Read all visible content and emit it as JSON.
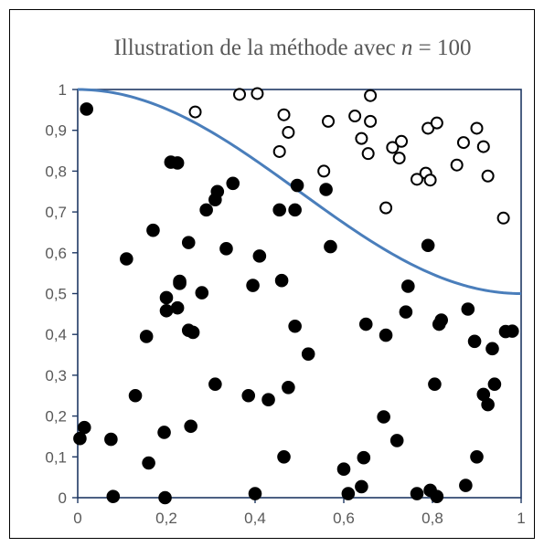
{
  "chart_data": {
    "type": "scatter",
    "title": "Illustration de la méthode avec ",
    "title_var": "n",
    "title_rest": " = 100",
    "xlim": [
      0,
      1
    ],
    "ylim": [
      0,
      1
    ],
    "x_ticks": [
      "0",
      "0,2",
      "0,4",
      "0,6",
      "0,8",
      "1"
    ],
    "y_ticks": [
      "0",
      "0,1",
      "0,2",
      "0,3",
      "0,4",
      "0,5",
      "0,6",
      "0,7",
      "0,8",
      "0,9",
      "1"
    ],
    "grid": false,
    "curve": {
      "color": "#4a7ebb",
      "function": "y = 1 - x^2/2 smoothstep-like decreasing from 1 to 0.5"
    },
    "series": [
      {
        "marker": "filled",
        "color": "#000000",
        "points": [
          [
            0.005,
            0.145
          ],
          [
            0.015,
            0.172
          ],
          [
            0.02,
            0.952
          ],
          [
            0.075,
            0.143
          ],
          [
            0.08,
            0.003
          ],
          [
            0.11,
            0.585
          ],
          [
            0.13,
            0.25
          ],
          [
            0.155,
            0.395
          ],
          [
            0.16,
            0.085
          ],
          [
            0.17,
            0.655
          ],
          [
            0.195,
            0.16
          ],
          [
            0.197,
            0.0
          ],
          [
            0.2,
            0.49
          ],
          [
            0.2,
            0.458
          ],
          [
            0.21,
            0.822
          ],
          [
            0.225,
            0.82
          ],
          [
            0.225,
            0.465
          ],
          [
            0.23,
            0.525
          ],
          [
            0.23,
            0.53
          ],
          [
            0.25,
            0.625
          ],
          [
            0.25,
            0.41
          ],
          [
            0.255,
            0.175
          ],
          [
            0.26,
            0.405
          ],
          [
            0.28,
            0.502
          ],
          [
            0.29,
            0.705
          ],
          [
            0.31,
            0.73
          ],
          [
            0.31,
            0.278
          ],
          [
            0.315,
            0.75
          ],
          [
            0.335,
            0.61
          ],
          [
            0.35,
            0.77
          ],
          [
            0.385,
            0.25
          ],
          [
            0.395,
            0.52
          ],
          [
            0.4,
            0.01
          ],
          [
            0.41,
            0.592
          ],
          [
            0.43,
            0.24
          ],
          [
            0.455,
            0.705
          ],
          [
            0.46,
            0.532
          ],
          [
            0.465,
            0.1
          ],
          [
            0.475,
            0.27
          ],
          [
            0.49,
            0.705
          ],
          [
            0.49,
            0.42
          ],
          [
            0.495,
            0.765
          ],
          [
            0.52,
            0.352
          ],
          [
            0.56,
            0.755
          ],
          [
            0.57,
            0.615
          ],
          [
            0.6,
            0.07
          ],
          [
            0.61,
            0.01
          ],
          [
            0.64,
            0.027
          ],
          [
            0.645,
            0.098
          ],
          [
            0.65,
            0.425
          ],
          [
            0.69,
            0.198
          ],
          [
            0.695,
            0.398
          ],
          [
            0.72,
            0.14
          ],
          [
            0.74,
            0.455
          ],
          [
            0.745,
            0.518
          ],
          [
            0.765,
            0.01
          ],
          [
            0.79,
            0.618
          ],
          [
            0.795,
            0.018
          ],
          [
            0.805,
            0.278
          ],
          [
            0.81,
            0.003
          ],
          [
            0.815,
            0.425
          ],
          [
            0.82,
            0.435
          ],
          [
            0.875,
            0.03
          ],
          [
            0.88,
            0.462
          ],
          [
            0.895,
            0.383
          ],
          [
            0.9,
            0.1
          ],
          [
            0.915,
            0.253
          ],
          [
            0.925,
            0.228
          ],
          [
            0.935,
            0.365
          ],
          [
            0.94,
            0.278
          ],
          [
            0.965,
            0.407
          ],
          [
            0.98,
            0.408
          ]
        ]
      },
      {
        "marker": "open",
        "color": "#000000",
        "points": [
          [
            0.265,
            0.945
          ],
          [
            0.365,
            0.988
          ],
          [
            0.405,
            0.99
          ],
          [
            0.455,
            0.848
          ],
          [
            0.465,
            0.938
          ],
          [
            0.475,
            0.895
          ],
          [
            0.555,
            0.8
          ],
          [
            0.565,
            0.922
          ],
          [
            0.625,
            0.935
          ],
          [
            0.64,
            0.88
          ],
          [
            0.655,
            0.843
          ],
          [
            0.66,
            0.985
          ],
          [
            0.66,
            0.922
          ],
          [
            0.695,
            0.71
          ],
          [
            0.71,
            0.858
          ],
          [
            0.725,
            0.832
          ],
          [
            0.73,
            0.873
          ],
          [
            0.765,
            0.78
          ],
          [
            0.785,
            0.795
          ],
          [
            0.79,
            0.905
          ],
          [
            0.795,
            0.778
          ],
          [
            0.81,
            0.918
          ],
          [
            0.855,
            0.815
          ],
          [
            0.87,
            0.87
          ],
          [
            0.9,
            0.905
          ],
          [
            0.915,
            0.86
          ],
          [
            0.925,
            0.788
          ],
          [
            0.96,
            0.685
          ]
        ]
      }
    ]
  }
}
